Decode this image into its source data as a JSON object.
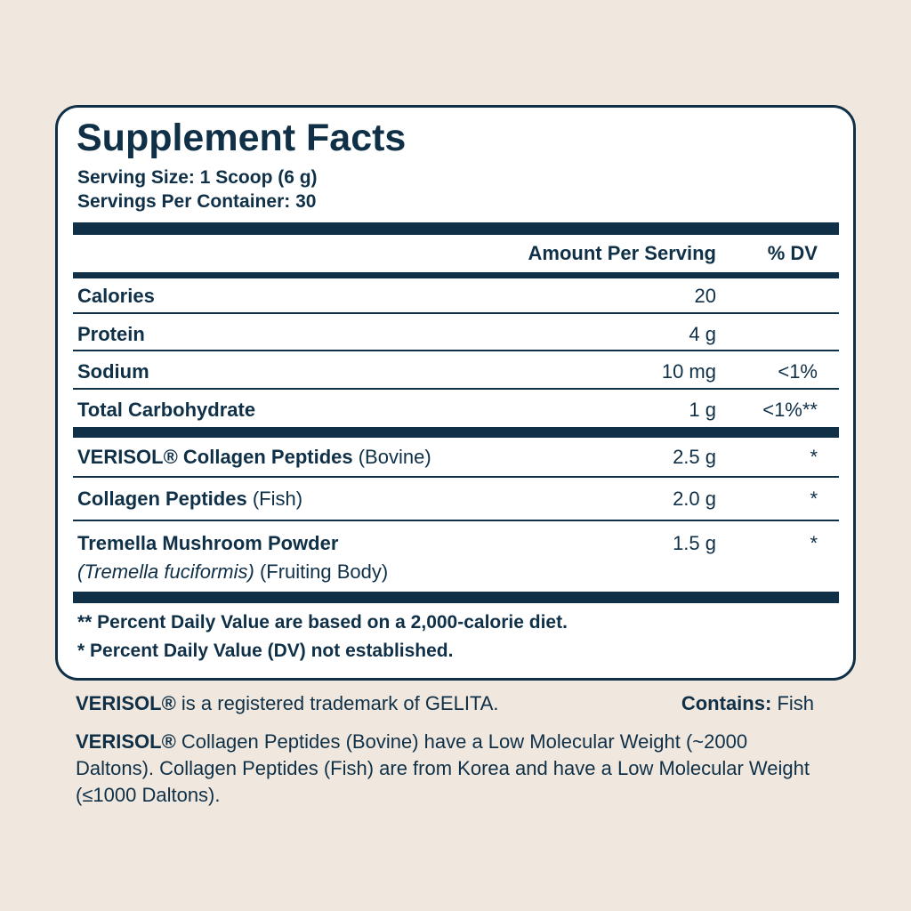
{
  "header": {
    "title": "Supplement Facts",
    "serving_size": "Serving Size: 1 Scoop (6 g)",
    "servings_per_container": "Servings Per Container: 30"
  },
  "table": {
    "columns": [
      "Amount Per Serving",
      "% DV"
    ],
    "rows": [
      {
        "name": "Calories",
        "amount": "20"
      },
      {
        "name": "Protein",
        "amount": "4 g"
      },
      {
        "name": "Sodium",
        "amount": "10 mg",
        "dv": "<1%"
      },
      {
        "name": "Total Carbohydrate",
        "amount": "1 g",
        "dv": "<1%**"
      },
      {
        "name": "VERISOL® Collagen Peptides",
        "detail": "(Bovine)",
        "amount": "2.5 g",
        "dv": "*"
      },
      {
        "name": "Collagen Peptides",
        "detail": "(Fish)",
        "amount": "2.0 g",
        "dv": "*"
      },
      {
        "name": "Tremella Mushroom Powder",
        "latin": "(Tremella fuciformis)",
        "detail": "(Fruiting Body)",
        "amount": "1.5 g",
        "dv": "*"
      }
    ]
  },
  "footnotes": [
    "** Percent Daily Value are based on a 2,000-calorie diet.",
    "* Percent Daily Value (DV) not established."
  ],
  "footer": {
    "trademark": {
      "brand": "VERISOL®",
      "text": "is a registered trademark of GELITA."
    },
    "contains": {
      "label": "Contains:",
      "value": "Fish"
    },
    "note": {
      "brand": "VERISOL®",
      "text": "Collagen Peptides (Bovine) have a Low Molecular Weight (~2000 Daltons). Collagen Peptides (Fish) are from Korea and have a Low Molecular Weight (≤1000 Daltons)."
    }
  }
}
